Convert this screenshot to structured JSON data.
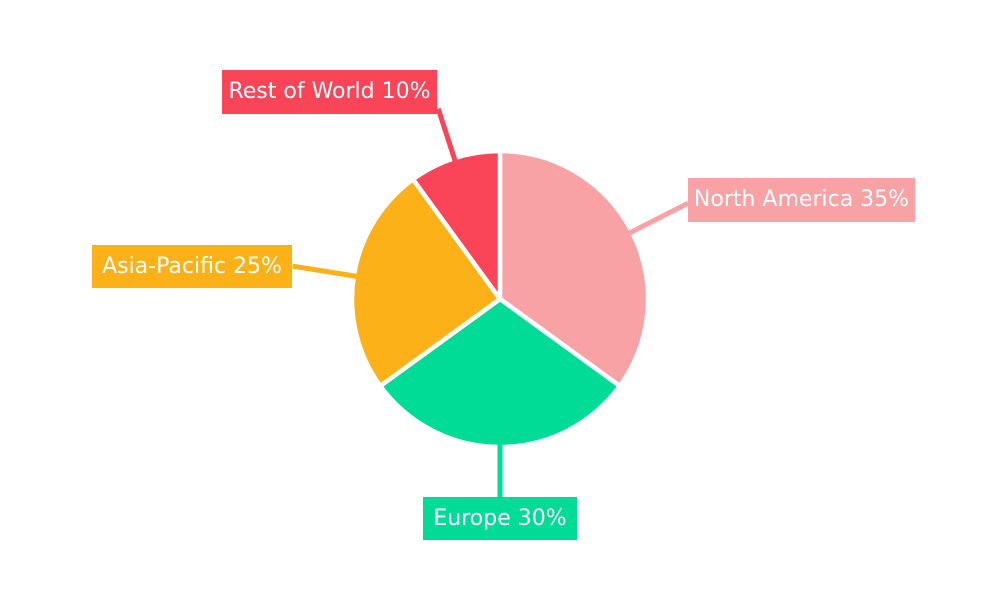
{
  "page": {
    "background": "#FFFFFF"
  },
  "chart_data": {
    "type": "pie",
    "title": "",
    "legend": "none",
    "direction": "clockwise",
    "start_angle_deg": 0,
    "gridlines": "none",
    "label_text_color": "#FFFFFF",
    "slice_gap_color": "#FFFFFF",
    "slices": [
      {
        "label": "North America",
        "value": 35,
        "display_text": "North America 35%",
        "color": "#F8A2A6"
      },
      {
        "label": "Europe",
        "value": 30,
        "display_text": "Europe 30%",
        "color": "#00DC95"
      },
      {
        "label": "Asia-Pacific",
        "value": 25,
        "display_text": "Asia-Pacific 25%",
        "color": "#FBB117"
      },
      {
        "label": "Rest of World",
        "value": 10,
        "display_text": "Rest of World 10%",
        "color": "#FA4458"
      }
    ]
  }
}
